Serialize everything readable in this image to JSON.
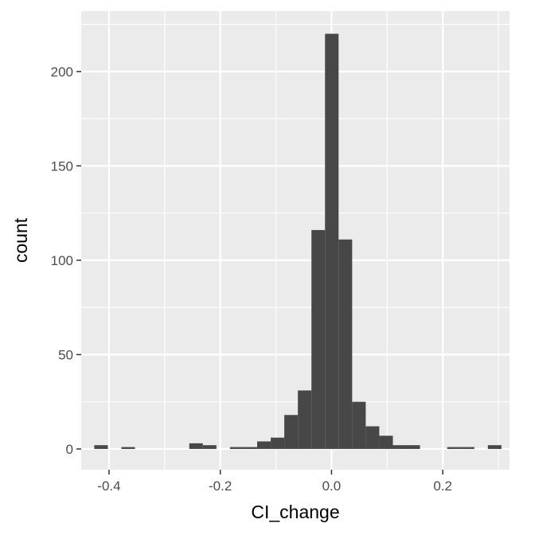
{
  "chart_data": {
    "type": "bar",
    "xlabel": "CI_change",
    "ylabel": "count",
    "xlim": [
      -0.45,
      0.32
    ],
    "ylim": [
      -11,
      232
    ],
    "x_ticks": [
      {
        "value": -0.4,
        "label": "-0.4"
      },
      {
        "value": -0.2,
        "label": "-0.2"
      },
      {
        "value": 0.0,
        "label": "0.0"
      },
      {
        "value": 0.2,
        "label": "0.2"
      }
    ],
    "y_ticks": [
      {
        "value": 0,
        "label": "0"
      },
      {
        "value": 50,
        "label": "50"
      },
      {
        "value": 100,
        "label": "100"
      },
      {
        "value": 150,
        "label": "150"
      },
      {
        "value": 200,
        "label": "200"
      }
    ],
    "grid": true,
    "bin_width": 0.0244,
    "bins": [
      {
        "x": -0.4143,
        "count": 2
      },
      {
        "x": -0.3655,
        "count": 1
      },
      {
        "x": -0.2435,
        "count": 3
      },
      {
        "x": -0.2191,
        "count": 2
      },
      {
        "x": -0.1703,
        "count": 1
      },
      {
        "x": -0.1459,
        "count": 1
      },
      {
        "x": -0.1215,
        "count": 4
      },
      {
        "x": -0.0971,
        "count": 6
      },
      {
        "x": -0.0727,
        "count": 18
      },
      {
        "x": -0.0483,
        "count": 31
      },
      {
        "x": -0.0239,
        "count": 116
      },
      {
        "x": 0.0005,
        "count": 220
      },
      {
        "x": 0.0249,
        "count": 111
      },
      {
        "x": 0.0493,
        "count": 25
      },
      {
        "x": 0.0737,
        "count": 12
      },
      {
        "x": 0.0981,
        "count": 7
      },
      {
        "x": 0.1225,
        "count": 2
      },
      {
        "x": 0.1469,
        "count": 2
      },
      {
        "x": 0.2201,
        "count": 1
      },
      {
        "x": 0.2445,
        "count": 1
      },
      {
        "x": 0.2933,
        "count": 2
      }
    ],
    "colors": {
      "panel_background": "#ebebeb",
      "grid_major": "#ffffff",
      "bar_fill": "#474747",
      "tick_label": "#4d4d4d",
      "tick_mark": "#333333"
    }
  }
}
